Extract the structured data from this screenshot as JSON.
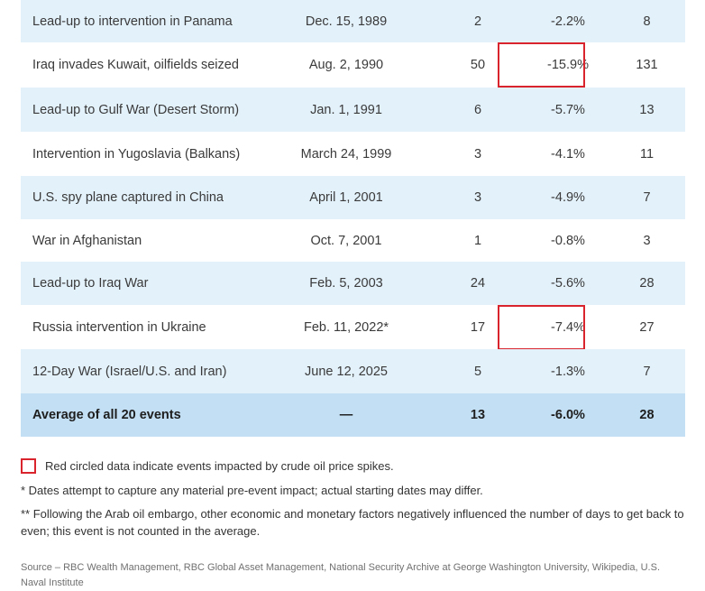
{
  "rows": [
    {
      "event": "Lead-up to intervention in Panama",
      "date": "Dec. 15, 1989",
      "num": "2",
      "pct": "-2.2%",
      "days": "8",
      "highlight": false
    },
    {
      "event": "Iraq invades Kuwait, oilfields seized",
      "date": "Aug. 2, 1990",
      "num": "50",
      "pct": "-15.9%",
      "days": "131",
      "highlight": true
    },
    {
      "event": "Lead-up to Gulf War (Desert Storm)",
      "date": "Jan. 1, 1991",
      "num": "6",
      "pct": "-5.7%",
      "days": "13",
      "highlight": false
    },
    {
      "event": "Intervention in Yugoslavia (Balkans)",
      "date": "March 24, 1999",
      "num": "3",
      "pct": "-4.1%",
      "days": "11",
      "highlight": false
    },
    {
      "event": "U.S. spy plane captured in China",
      "date": "April 1, 2001",
      "num": "3",
      "pct": "-4.9%",
      "days": "7",
      "highlight": false
    },
    {
      "event": "War in Afghanistan",
      "date": "Oct. 7, 2001",
      "num": "1",
      "pct": "-0.8%",
      "days": "3",
      "highlight": false
    },
    {
      "event": "Lead-up to Iraq War",
      "date": "Feb. 5, 2003",
      "num": "24",
      "pct": "-5.6%",
      "days": "28",
      "highlight": false
    },
    {
      "event": "Russia intervention in Ukraine",
      "date": "Feb. 11, 2022*",
      "num": "17",
      "pct": "-7.4%",
      "days": "27",
      "highlight": true
    },
    {
      "event": "12-Day War (Israel/U.S. and Iran)",
      "date": "June 12, 2025",
      "num": "5",
      "pct": "-1.3%",
      "days": "7",
      "highlight": false
    }
  ],
  "total": {
    "event": "Average of all 20 events",
    "date": "—",
    "num": "13",
    "pct": "-6.0%",
    "days": "28"
  },
  "legend": {
    "text": "Red circled data indicate events impacted by crude oil price spikes."
  },
  "notes": [
    "* Dates attempt to capture any material pre-event impact; actual starting dates may differ.",
    "** Following the Arab oil embargo, other economic and monetary factors negatively influenced the number of days to get back to even; this event is not counted in the average."
  ],
  "source": "Source – RBC Wealth Management, RBC Global Asset Management, National Security Archive at George Washington University, Wikipedia, U.S. Naval Institute",
  "colors": {
    "row_alt": "#e3f1fb",
    "row_total": "#c2dff3",
    "highlight": "#d9232d"
  }
}
